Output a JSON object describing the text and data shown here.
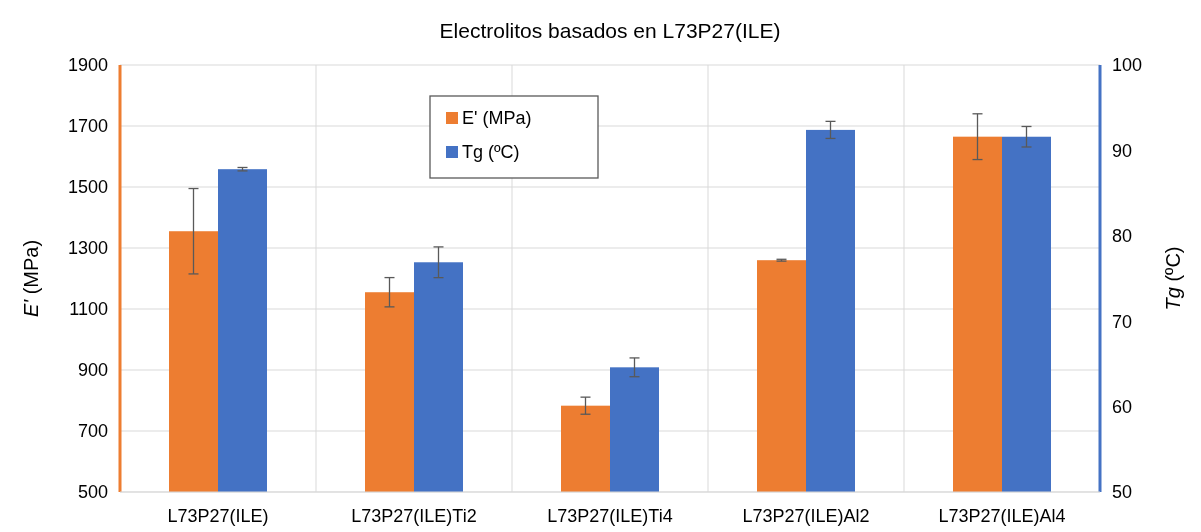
{
  "chart_data": {
    "type": "bar",
    "title": "Electrolitos basados en L73P27(ILE)",
    "ylabel": "E' (MPa)",
    "y2label": "Tg (ºC)",
    "categories": [
      "L73P27(ILE)",
      "L73P27(ILE)Ti2",
      "L73P27(ILE)Ti4",
      "L73P27(ILE)Al2",
      "L73P27(ILE)Al4"
    ],
    "series": [
      {
        "name": "E' (MPa)",
        "color": "#ed7d31",
        "values": [
          1355,
          1155,
          783,
          1260,
          1665
        ],
        "errors": [
          140,
          48,
          28,
          3,
          75
        ]
      },
      {
        "name": "Tg (ºC)",
        "color": "#4472c4",
        "axis": "y2",
        "values": [
          87.8,
          76.9,
          64.6,
          92.4,
          91.6
        ],
        "errors": [
          0.2,
          1.8,
          1.1,
          1.0,
          1.2
        ]
      }
    ],
    "ylim": [
      500,
      1900
    ],
    "yticks": [
      500,
      700,
      900,
      1100,
      1300,
      1500,
      1700,
      1900
    ],
    "y2lim": [
      50,
      100
    ],
    "y2ticks": [
      50,
      60,
      70,
      80,
      90,
      100
    ],
    "grid": true,
    "legend": "top"
  }
}
